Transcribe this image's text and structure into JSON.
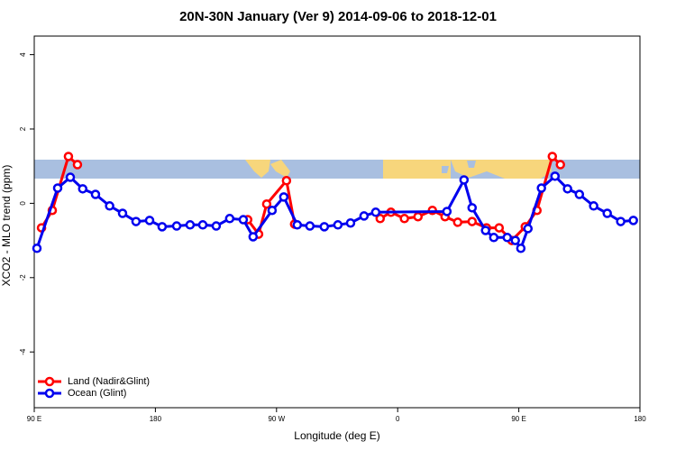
{
  "chart_data": {
    "type": "line",
    "title": "20N-30N January (Ver 9)   2014-09-06 to 2018-12-01",
    "x_label": "Longitude (deg E)",
    "y_label": "XCO2 - MLO trend (ppm)",
    "xlim": [
      90,
      540
    ],
    "ylim": [
      -5.5,
      4.5
    ],
    "xticks": [
      {
        "value": 90,
        "label": "90 E"
      },
      {
        "value": 180,
        "label": "180"
      },
      {
        "value": 270,
        "label": "90 W"
      },
      {
        "value": 360,
        "label": "0"
      },
      {
        "value": 450,
        "label": "90 E"
      },
      {
        "value": 540,
        "label": "180"
      }
    ],
    "yticks": [
      -4,
      -2,
      0,
      2,
      4
    ],
    "legend": "bottom-left",
    "series": [
      {
        "name": "Land (Nadir&Glint)",
        "color": "#ff0000",
        "x": [
          95.4,
          103.4,
          115.4,
          122.1,
          185,
          248.6,
          256.7,
          262.7,
          277.4,
          283.4,
          315,
          347,
          355,
          365,
          375.1,
          385.8,
          395.2,
          404.6,
          415.3,
          426,
          435.4,
          444.8,
          454.8,
          463.5,
          474.9,
          480.9
        ],
        "values": [
          -0.66,
          -0.19,
          1.26,
          1.04,
          null,
          -0.44,
          -0.83,
          -0.02,
          0.61,
          -0.56,
          null,
          -0.41,
          -0.24,
          -0.41,
          -0.36,
          -0.19,
          -0.36,
          -0.51,
          -0.49,
          -0.66,
          -0.66,
          -1.0,
          -0.63,
          -0.19,
          1.26,
          1.04
        ]
      },
      {
        "name": "Ocean (Glint)",
        "color": "#0000ee",
        "x": [
          92,
          107.4,
          116.8,
          126,
          135.5,
          146,
          155.6,
          165.6,
          175.7,
          185,
          195.8,
          205.8,
          215.2,
          225.2,
          235.2,
          245.3,
          252.6,
          266.7,
          275.4,
          285.4,
          294.8,
          305.5,
          315.6,
          325,
          335,
          343.7,
          396.6,
          409.3,
          415.3,
          425.3,
          431.4,
          441.4,
          447.4,
          451.5,
          456.8,
          466.8,
          476.9,
          486.2,
          495,
          505.6,
          515.7,
          525.7,
          535.1
        ],
        "values": [
          -1.21,
          0.41,
          0.7,
          0.39,
          0.24,
          -0.07,
          -0.27,
          -0.49,
          -0.46,
          -0.63,
          -0.61,
          -0.58,
          -0.58,
          -0.61,
          -0.41,
          -0.44,
          -0.9,
          -0.19,
          0.17,
          -0.58,
          -0.61,
          -0.63,
          -0.58,
          -0.53,
          -0.34,
          -0.24,
          -0.22,
          0.63,
          -0.12,
          -0.73,
          -0.92,
          -0.92,
          -1.0,
          -1.21,
          -0.68,
          0.41,
          0.73,
          0.39,
          0.24,
          -0.07,
          -0.27,
          -0.49,
          -0.46
        ]
      }
    ]
  }
}
